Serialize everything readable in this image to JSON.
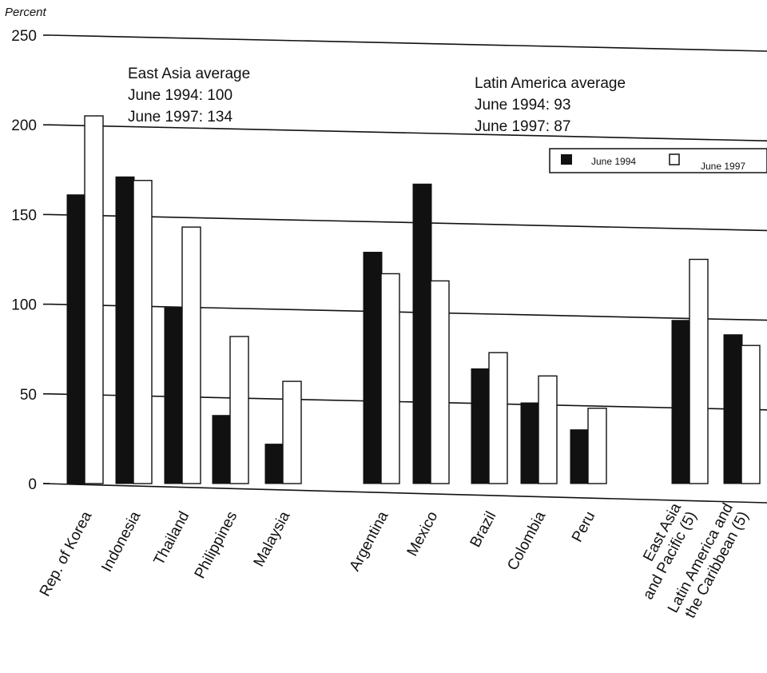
{
  "chart_data": {
    "type": "bar",
    "ylabel": "Percent",
    "ylim": [
      0,
      250
    ],
    "yticks": [
      0,
      50,
      100,
      150,
      200,
      250
    ],
    "grid": true,
    "categories": [
      "Rep. of Korea",
      "Indonesia",
      "Thailand",
      "Philippines",
      "Malaysia",
      "Argentina",
      "Mexico",
      "Brazil",
      "Colombia",
      "Peru",
      "East Asia and Pacific (5)",
      "Latin America and the Caribbean (5)"
    ],
    "category_lines": [
      [
        "Rep. of Korea"
      ],
      [
        "Indonesia"
      ],
      [
        "Thailand"
      ],
      [
        "Philippines"
      ],
      [
        "Malaysia"
      ],
      [
        "Argentina"
      ],
      [
        "Mexico"
      ],
      [
        "Brazil"
      ],
      [
        "Colombia"
      ],
      [
        "Peru"
      ],
      [
        "East Asia",
        "and Pacific (5)"
      ],
      [
        "Latin America and",
        "the Caribbean (5)"
      ]
    ],
    "series": [
      {
        "name": "June 1994",
        "color": "#111111",
        "values": [
          161,
          171,
          98,
          38,
          22,
          129,
          167,
          64,
          45,
          30,
          91,
          83
        ]
      },
      {
        "name": "June 1997",
        "color": "#ffffff",
        "values": [
          205,
          169,
          143,
          82,
          57,
          117,
          113,
          73,
          60,
          42,
          125,
          77
        ]
      }
    ],
    "legend_position": "top-right",
    "annotations": [
      {
        "lines": [
          "East Asia average",
          "June 1994: 100",
          "June 1997: 134"
        ]
      },
      {
        "lines": [
          "Latin America average",
          "June 1994: 93",
          "June 1997: 87"
        ]
      }
    ]
  }
}
